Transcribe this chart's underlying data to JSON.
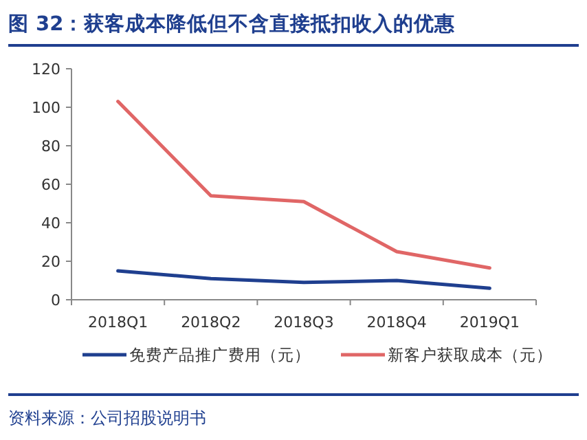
{
  "chart_data": {
    "type": "line",
    "title": "图 32：获客成本降低但不含直接抵扣收入的优惠",
    "categories": [
      "2018Q1",
      "2018Q2",
      "2018Q3",
      "2018Q4",
      "2019Q1"
    ],
    "series": [
      {
        "name": "免费产品推广费用（元）",
        "color": "#1f3f8f",
        "values": [
          15,
          11,
          9,
          10,
          6
        ]
      },
      {
        "name": "新客户获取成本（元）",
        "color": "#e06666",
        "values": [
          103,
          54,
          51,
          25,
          16.5
        ]
      }
    ],
    "ylim": [
      0,
      120
    ],
    "yticks": [
      0,
      20,
      40,
      60,
      80,
      100,
      120
    ],
    "legend": "bottom",
    "annotations": [
      "资料来源：公司招股说明书"
    ]
  }
}
